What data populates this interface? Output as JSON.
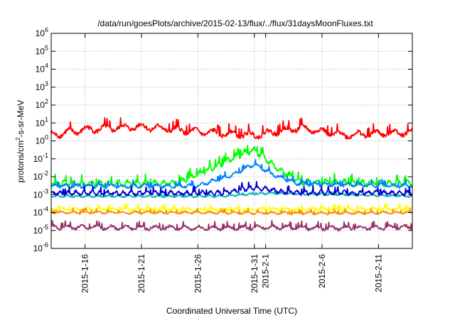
{
  "chart_data": {
    "type": "line",
    "title": "/data/run/goesPlots/archive/2015-02-13/flux/../flux/31daysMoonFluxes.txt",
    "xlabel": "Coordinated Universal Time (UTC)",
    "ylabel_parts": [
      "protons/cm",
      "2",
      "-s-sr-MeV"
    ],
    "x_domain": [
      "2015-01-13",
      "2015-02-14"
    ],
    "y_scale": "log",
    "ylim": [
      1e-06,
      1000000.0
    ],
    "grid": true,
    "legend": "none",
    "y_ticks": [
      {
        "mantissa": "10",
        "exp": "-6",
        "value": 1e-06
      },
      {
        "mantissa": "10",
        "exp": "-5",
        "value": 1e-05
      },
      {
        "mantissa": "10",
        "exp": "-4",
        "value": 0.0001
      },
      {
        "mantissa": "10",
        "exp": "-3",
        "value": 0.001
      },
      {
        "mantissa": "10",
        "exp": "-2",
        "value": 0.01
      },
      {
        "mantissa": "10",
        "exp": "-1",
        "value": 0.1
      },
      {
        "mantissa": "10",
        "exp": "0",
        "value": 1
      },
      {
        "mantissa": "10",
        "exp": "1",
        "value": 10
      },
      {
        "mantissa": "10",
        "exp": "2",
        "value": 100
      },
      {
        "mantissa": "10",
        "exp": "3",
        "value": 1000
      },
      {
        "mantissa": "10",
        "exp": "4",
        "value": 10000
      },
      {
        "mantissa": "10",
        "exp": "5",
        "value": 100000
      },
      {
        "mantissa": "10",
        "exp": "6",
        "value": 1000000
      }
    ],
    "x_ticks": [
      {
        "label": "2015-1-16",
        "date": "2015-01-16"
      },
      {
        "label": "2015-1-21",
        "date": "2015-01-21"
      },
      {
        "label": "2015-1-26",
        "date": "2015-01-26"
      },
      {
        "label": "2015-1-31",
        "date": "2015-01-31"
      },
      {
        "label": "2015-2-1",
        "date": "2015-02-01"
      },
      {
        "label": "2015-2-6",
        "date": "2015-02-06"
      },
      {
        "label": "2015-2-11",
        "date": "2015-02-11"
      }
    ],
    "series": [
      {
        "color": "#993366",
        "base": 1.5e-05,
        "spread": 2.2,
        "period_days": 1.3,
        "seed": 1,
        "points": [
          [
            "2015-01-13",
            1.5e-05
          ],
          [
            "2015-01-20",
            1.4e-05
          ],
          [
            "2015-01-28",
            1.3e-05
          ],
          [
            "2015-02-01",
            1.5e-05
          ],
          [
            "2015-02-07",
            1.3e-05
          ],
          [
            "2015-02-14",
            1.5e-05
          ]
        ]
      },
      {
        "color": "#ffff00",
        "base": 0.00016,
        "spread": 1.8,
        "period_days": 1.1,
        "seed": 2,
        "points": [
          [
            "2015-01-13",
            0.00016
          ],
          [
            "2015-01-20",
            0.00015
          ],
          [
            "2015-01-28",
            0.00014
          ],
          [
            "2015-02-01",
            0.00015
          ],
          [
            "2015-02-07",
            0.00015
          ],
          [
            "2015-02-14",
            0.00016
          ]
        ]
      },
      {
        "color": "#ff8c00",
        "base": 0.0001,
        "spread": 1.6,
        "period_days": 1.1,
        "seed": 3,
        "points": [
          [
            "2015-01-13",
            0.0001
          ],
          [
            "2015-01-25",
            0.0001
          ],
          [
            "2015-02-05",
            9e-05
          ],
          [
            "2015-02-14",
            0.0001
          ]
        ]
      },
      {
        "color": "#00b3b3",
        "base": 0.0008,
        "spread": 1.4,
        "period_days": 0.9,
        "seed": 4,
        "points": [
          [
            "2015-01-13",
            0.0008
          ],
          [
            "2015-01-28",
            0.0008
          ],
          [
            "2015-02-01",
            0.0012
          ],
          [
            "2015-02-14",
            0.0008
          ]
        ]
      },
      {
        "color": "#00ff00",
        "base": 0.004,
        "spread": 3.0,
        "period_days": 0.8,
        "seed": 5,
        "points": [
          [
            "2015-01-13",
            0.004
          ],
          [
            "2015-01-24",
            0.004
          ],
          [
            "2015-01-27",
            0.025
          ],
          [
            "2015-01-30",
            0.2
          ],
          [
            "2015-01-31",
            0.3
          ],
          [
            "2015-02-02",
            0.03
          ],
          [
            "2015-02-04",
            0.005
          ],
          [
            "2015-02-14",
            0.004
          ]
        ]
      },
      {
        "color": "#0080ff",
        "base": 0.003,
        "spread": 2.0,
        "period_days": 1.0,
        "seed": 6,
        "points": [
          [
            "2015-01-13",
            0.003
          ],
          [
            "2015-01-26",
            0.003
          ],
          [
            "2015-01-29",
            0.012
          ],
          [
            "2015-01-31",
            0.05
          ],
          [
            "2015-02-02",
            0.01
          ],
          [
            "2015-02-04",
            0.004
          ],
          [
            "2015-02-14",
            0.003
          ]
        ]
      },
      {
        "color": "#0000cc",
        "base": 0.0012,
        "spread": 2.2,
        "period_days": 0.7,
        "seed": 7,
        "points": [
          [
            "2015-01-13",
            0.0012
          ],
          [
            "2015-01-28",
            0.0012
          ],
          [
            "2015-01-31",
            0.0025
          ],
          [
            "2015-02-03",
            0.0013
          ],
          [
            "2015-02-14",
            0.0012
          ]
        ]
      },
      {
        "color": "#ff0000",
        "base": 3.0,
        "spread": 3.5,
        "period_days": 1.6,
        "seed": 8,
        "points": [
          [
            "2015-01-13",
            2.0
          ],
          [
            "2015-01-16",
            4.0
          ],
          [
            "2015-01-21",
            6.0
          ],
          [
            "2015-01-26",
            3.0
          ],
          [
            "2015-01-31",
            2.0
          ],
          [
            "2015-02-04",
            5.0
          ],
          [
            "2015-02-08",
            2.0
          ],
          [
            "2015-02-14",
            3.0
          ]
        ]
      }
    ]
  }
}
